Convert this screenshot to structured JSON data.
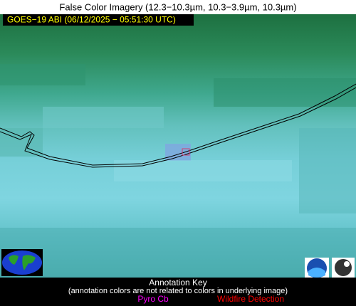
{
  "header": {
    "title": "False Color Imagery (12.3−10.3µm, 10.3−3.9µm, 10.3µm)"
  },
  "image": {
    "timestamp": "GOES−19 ABI (06/12/2025 − 05:51:30 UTC)"
  },
  "annotation_key": {
    "title": "Annotation Key",
    "subtitle": "(annotation colors are not related to colors in underlying image)",
    "items": [
      {
        "label": "Pyro Cb",
        "color": "#ff00ff"
      },
      {
        "label": "Wildfire Detection",
        "color": "#ff0000"
      }
    ]
  }
}
